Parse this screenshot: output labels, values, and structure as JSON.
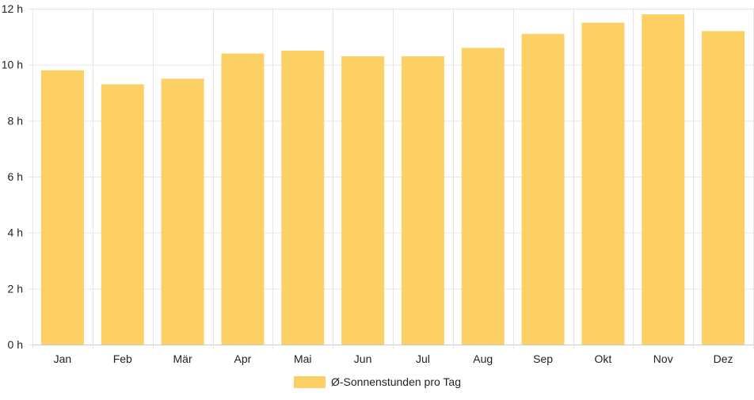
{
  "chart_data": {
    "type": "bar",
    "categories": [
      "Jan",
      "Feb",
      "Mär",
      "Apr",
      "Mai",
      "Jun",
      "Jul",
      "Aug",
      "Sep",
      "Okt",
      "Nov",
      "Dez"
    ],
    "series": [
      {
        "name": "Ø-Sonnenstunden pro Tag",
        "values": [
          9.8,
          9.3,
          9.5,
          10.4,
          10.5,
          10.3,
          10.3,
          10.6,
          11.1,
          11.5,
          11.8,
          11.2
        ],
        "color": "#fdd066"
      }
    ],
    "ylim": [
      0,
      12
    ],
    "yticks": [
      0,
      2,
      4,
      6,
      8,
      10,
      12
    ],
    "ytick_suffix": " h",
    "grid": true,
    "legend_position": "bottom"
  }
}
